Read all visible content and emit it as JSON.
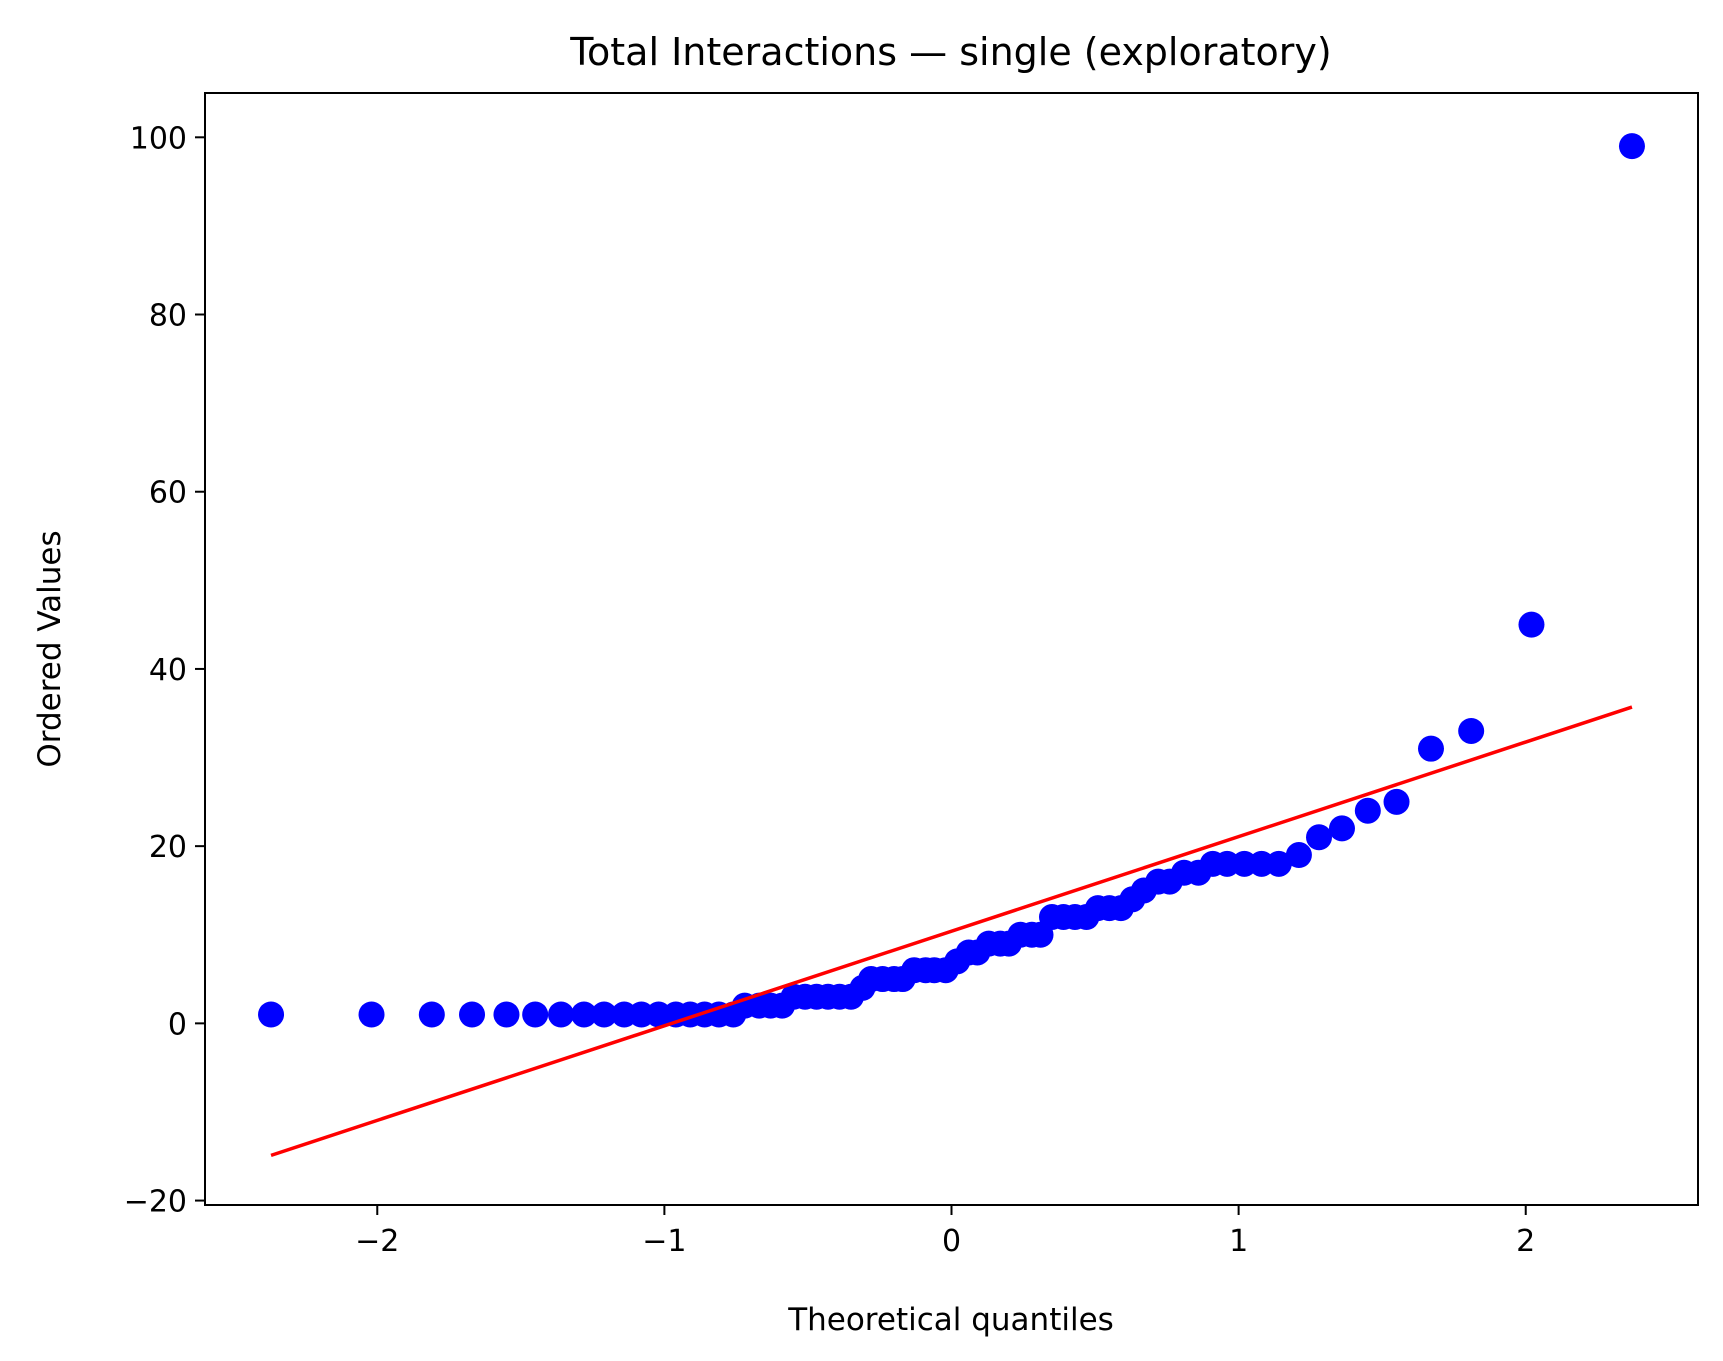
{
  "chart_data": {
    "type": "scatter",
    "title": "Total Interactions — single (exploratory)",
    "xlabel": "Theoretical quantiles",
    "ylabel": "Ordered Values",
    "xlim": [
      -2.6,
      2.6
    ],
    "ylim": [
      -20.5,
      105
    ],
    "xticks": [
      -2,
      -1,
      0,
      1,
      2
    ],
    "xtick_labels": [
      "−2",
      "−1",
      "0",
      "1",
      "2"
    ],
    "yticks": [
      -20,
      0,
      20,
      40,
      60,
      80,
      100
    ],
    "ytick_labels": [
      "−20",
      "0",
      "20",
      "40",
      "60",
      "80",
      "100"
    ],
    "grid": false,
    "series": [
      {
        "type": "scatter",
        "color": "#0000ff",
        "x": [
          -2.37,
          -2.02,
          -1.81,
          -1.67,
          -1.55,
          -1.45,
          -1.36,
          -1.28,
          -1.21,
          -1.14,
          -1.08,
          -1.02,
          -0.96,
          -0.91,
          -0.86,
          -0.81,
          -0.76,
          -0.72,
          -0.67,
          -0.63,
          -0.59,
          -0.55,
          -0.51,
          -0.47,
          -0.43,
          -0.39,
          -0.35,
          -0.31,
          -0.28,
          -0.24,
          -0.2,
          -0.17,
          -0.13,
          -0.09,
          -0.06,
          -0.02,
          0.02,
          0.06,
          0.09,
          0.13,
          0.17,
          0.2,
          0.24,
          0.28,
          0.31,
          0.35,
          0.39,
          0.43,
          0.47,
          0.51,
          0.55,
          0.59,
          0.63,
          0.67,
          0.72,
          0.76,
          0.81,
          0.86,
          0.91,
          0.96,
          1.02,
          1.08,
          1.14,
          1.21,
          1.28,
          1.36,
          1.45,
          1.55,
          1.67,
          1.81,
          2.02,
          2.37
        ],
        "y": [
          1,
          1,
          1,
          1,
          1,
          1,
          1,
          1,
          1,
          1,
          1,
          1,
          1,
          1,
          1,
          1,
          1,
          2,
          2,
          2,
          2,
          3,
          3,
          3,
          3,
          3,
          3,
          4,
          5,
          5,
          5,
          5,
          6,
          6,
          6,
          6,
          7,
          8,
          8,
          9,
          9,
          9,
          10,
          10,
          10,
          12,
          12,
          12,
          12,
          13,
          13,
          13,
          14,
          15,
          16,
          16,
          17,
          17,
          18,
          18,
          18,
          18,
          18,
          19,
          21,
          22,
          24,
          25,
          31,
          33,
          45,
          99
        ]
      },
      {
        "type": "line",
        "color": "#ff0000",
        "x": [
          -2.37,
          2.37
        ],
        "y": [
          -14.9,
          35.7
        ]
      }
    ]
  }
}
